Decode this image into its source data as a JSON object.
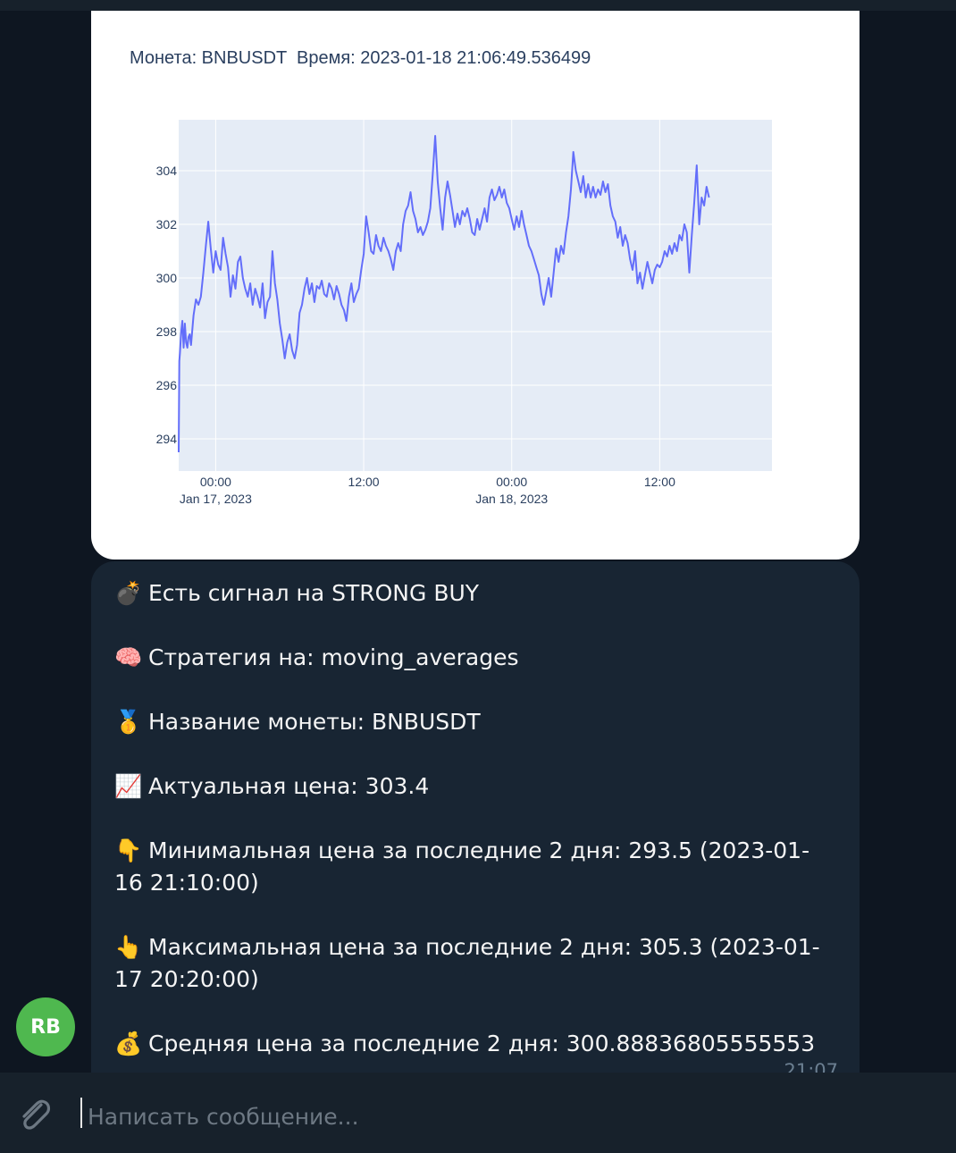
{
  "chart_message": {
    "title": "Монета: BNBUSDT  Время: 2023-01-18 21:06:49.536499",
    "chart_data": {
      "type": "line",
      "series": [
        {
          "values": [
            [
              -3.0,
              293.5
            ],
            [
              -2.95,
              296.9
            ],
            [
              -2.9,
              297.2
            ],
            [
              -2.8,
              298.0
            ],
            [
              -2.7,
              298.4
            ],
            [
              -2.6,
              297.4
            ],
            [
              -2.5,
              298.3
            ],
            [
              -2.4,
              297.6
            ],
            [
              -2.3,
              297.4
            ],
            [
              -2.2,
              297.8
            ],
            [
              -2.1,
              297.9
            ],
            [
              -2.0,
              297.5
            ],
            [
              -1.8,
              298.6
            ],
            [
              -1.6,
              299.2
            ],
            [
              -1.4,
              299.0
            ],
            [
              -1.2,
              299.3
            ],
            [
              -1.0,
              300.2
            ],
            [
              -0.8,
              301.2
            ],
            [
              -0.6,
              302.1
            ],
            [
              -0.4,
              301.1
            ],
            [
              -0.2,
              300.2
            ],
            [
              0.0,
              301.0
            ],
            [
              0.2,
              300.5
            ],
            [
              0.4,
              300.3
            ],
            [
              0.6,
              301.5
            ],
            [
              0.8,
              300.9
            ],
            [
              1.0,
              300.4
            ],
            [
              1.2,
              299.3
            ],
            [
              1.4,
              300.1
            ],
            [
              1.6,
              299.6
            ],
            [
              1.8,
              300.6
            ],
            [
              2.0,
              300.8
            ],
            [
              2.2,
              300.0
            ],
            [
              2.4,
              299.6
            ],
            [
              2.6,
              299.3
            ],
            [
              2.8,
              299.8
            ],
            [
              3.0,
              299.0
            ],
            [
              3.2,
              299.6
            ],
            [
              3.4,
              299.3
            ],
            [
              3.6,
              298.9
            ],
            [
              3.8,
              299.8
            ],
            [
              4.0,
              298.5
            ],
            [
              4.2,
              299.1
            ],
            [
              4.4,
              299.3
            ],
            [
              4.6,
              301.0
            ],
            [
              4.8,
              299.8
            ],
            [
              5.0,
              299.2
            ],
            [
              5.2,
              298.3
            ],
            [
              5.4,
              297.7
            ],
            [
              5.6,
              297.0
            ],
            [
              5.8,
              297.6
            ],
            [
              6.0,
              297.9
            ],
            [
              6.2,
              297.3
            ],
            [
              6.4,
              297.0
            ],
            [
              6.6,
              297.5
            ],
            [
              6.8,
              298.7
            ],
            [
              7.0,
              299.0
            ],
            [
              7.2,
              299.6
            ],
            [
              7.4,
              300.0
            ],
            [
              7.6,
              299.4
            ],
            [
              7.8,
              299.8
            ],
            [
              8.0,
              299.1
            ],
            [
              8.2,
              299.7
            ],
            [
              8.4,
              299.6
            ],
            [
              8.6,
              299.9
            ],
            [
              8.8,
              299.4
            ],
            [
              9.0,
              299.3
            ],
            [
              9.2,
              299.8
            ],
            [
              9.4,
              299.6
            ],
            [
              9.6,
              299.2
            ],
            [
              9.8,
              299.7
            ],
            [
              10.0,
              299.4
            ],
            [
              10.2,
              299.0
            ],
            [
              10.4,
              298.8
            ],
            [
              10.6,
              298.4
            ],
            [
              10.8,
              299.3
            ],
            [
              11.0,
              299.8
            ],
            [
              11.2,
              299.1
            ],
            [
              11.4,
              299.4
            ],
            [
              11.6,
              299.6
            ],
            [
              11.8,
              300.3
            ],
            [
              12.0,
              300.9
            ],
            [
              12.2,
              302.3
            ],
            [
              12.4,
              301.7
            ],
            [
              12.6,
              301.0
            ],
            [
              12.8,
              300.9
            ],
            [
              13.0,
              301.6
            ],
            [
              13.2,
              301.2
            ],
            [
              13.4,
              301.0
            ],
            [
              13.6,
              301.5
            ],
            [
              13.8,
              301.2
            ],
            [
              14.0,
              301.0
            ],
            [
              14.2,
              300.7
            ],
            [
              14.4,
              300.3
            ],
            [
              14.6,
              301.0
            ],
            [
              14.8,
              301.3
            ],
            [
              15.0,
              301.0
            ],
            [
              15.2,
              302.0
            ],
            [
              15.4,
              302.5
            ],
            [
              15.6,
              302.7
            ],
            [
              15.8,
              303.2
            ],
            [
              16.0,
              302.5
            ],
            [
              16.2,
              302.2
            ],
            [
              16.4,
              301.7
            ],
            [
              16.6,
              301.9
            ],
            [
              16.8,
              301.6
            ],
            [
              17.0,
              301.8
            ],
            [
              17.2,
              302.1
            ],
            [
              17.4,
              302.6
            ],
            [
              17.6,
              303.9
            ],
            [
              17.8,
              305.3
            ],
            [
              18.0,
              303.6
            ],
            [
              18.2,
              302.6
            ],
            [
              18.4,
              301.8
            ],
            [
              18.6,
              303.0
            ],
            [
              18.8,
              303.6
            ],
            [
              19.0,
              303.1
            ],
            [
              19.2,
              302.5
            ],
            [
              19.4,
              301.9
            ],
            [
              19.6,
              302.4
            ],
            [
              19.8,
              302.0
            ],
            [
              20.0,
              302.5
            ],
            [
              20.2,
              302.3
            ],
            [
              20.4,
              302.6
            ],
            [
              20.6,
              302.2
            ],
            [
              20.8,
              301.7
            ],
            [
              21.0,
              301.6
            ],
            [
              21.2,
              302.2
            ],
            [
              21.4,
              301.8
            ],
            [
              21.6,
              302.2
            ],
            [
              21.8,
              302.6
            ],
            [
              22.0,
              302.1
            ],
            [
              22.2,
              303.0
            ],
            [
              22.4,
              303.3
            ],
            [
              22.6,
              302.9
            ],
            [
              22.8,
              303.1
            ],
            [
              23.0,
              303.4
            ],
            [
              23.2,
              303.0
            ],
            [
              23.4,
              303.3
            ],
            [
              23.6,
              302.8
            ],
            [
              23.8,
              302.6
            ],
            [
              24.0,
              302.2
            ],
            [
              24.2,
              301.8
            ],
            [
              24.4,
              302.3
            ],
            [
              24.6,
              301.9
            ],
            [
              24.8,
              302.5
            ],
            [
              25.0,
              302.0
            ],
            [
              25.2,
              301.6
            ],
            [
              25.4,
              301.2
            ],
            [
              25.6,
              301.0
            ],
            [
              25.8,
              300.7
            ],
            [
              26.0,
              300.4
            ],
            [
              26.2,
              300.1
            ],
            [
              26.4,
              299.4
            ],
            [
              26.6,
              299.0
            ],
            [
              26.8,
              299.5
            ],
            [
              27.0,
              300.0
            ],
            [
              27.2,
              299.3
            ],
            [
              27.4,
              300.2
            ],
            [
              27.6,
              301.1
            ],
            [
              27.8,
              300.6
            ],
            [
              28.0,
              301.2
            ],
            [
              28.2,
              300.9
            ],
            [
              28.4,
              301.7
            ],
            [
              28.6,
              302.3
            ],
            [
              28.8,
              303.3
            ],
            [
              29.0,
              304.7
            ],
            [
              29.2,
              304.0
            ],
            [
              29.4,
              303.6
            ],
            [
              29.6,
              303.2
            ],
            [
              29.8,
              303.8
            ],
            [
              30.0,
              303.0
            ],
            [
              30.2,
              303.5
            ],
            [
              30.4,
              303.0
            ],
            [
              30.6,
              303.4
            ],
            [
              30.8,
              303.0
            ],
            [
              31.0,
              303.3
            ],
            [
              31.2,
              303.1
            ],
            [
              31.4,
              303.6
            ],
            [
              31.6,
              303.2
            ],
            [
              31.8,
              303.5
            ],
            [
              32.0,
              302.7
            ],
            [
              32.2,
              302.3
            ],
            [
              32.4,
              302.1
            ],
            [
              32.6,
              301.5
            ],
            [
              32.8,
              301.9
            ],
            [
              33.0,
              301.2
            ],
            [
              33.2,
              301.6
            ],
            [
              33.4,
              301.3
            ],
            [
              33.6,
              300.7
            ],
            [
              33.8,
              300.3
            ],
            [
              34.0,
              301.0
            ],
            [
              34.2,
              299.8
            ],
            [
              34.4,
              300.2
            ],
            [
              34.6,
              299.6
            ],
            [
              34.8,
              300.1
            ],
            [
              35.0,
              300.6
            ],
            [
              35.2,
              300.2
            ],
            [
              35.4,
              299.8
            ],
            [
              35.6,
              300.3
            ],
            [
              35.8,
              300.5
            ],
            [
              36.0,
              300.4
            ],
            [
              36.2,
              300.6
            ],
            [
              36.4,
              301.0
            ],
            [
              36.6,
              300.8
            ],
            [
              36.8,
              301.2
            ],
            [
              37.0,
              300.9
            ],
            [
              37.2,
              301.3
            ],
            [
              37.4,
              301.0
            ],
            [
              37.6,
              301.6
            ],
            [
              37.8,
              301.4
            ],
            [
              38.0,
              302.0
            ],
            [
              38.2,
              301.7
            ],
            [
              38.4,
              300.2
            ],
            [
              38.6,
              301.6
            ],
            [
              38.8,
              302.8
            ],
            [
              39.0,
              304.2
            ],
            [
              39.2,
              302.0
            ],
            [
              39.4,
              303.0
            ],
            [
              39.6,
              302.7
            ],
            [
              39.8,
              303.4
            ],
            [
              40.0,
              303.0
            ]
          ]
        }
      ],
      "xlim": [
        -3.0,
        45.1
      ],
      "ylim": [
        292.8,
        305.9
      ],
      "x_ticks": [
        0,
        12,
        24,
        36
      ],
      "x_tick_labels": [
        "00:00",
        "12:00",
        "00:00",
        "12:00"
      ],
      "x_tick_sublabels": [
        "Jan 17, 2023",
        "",
        "Jan 18, 2023",
        ""
      ],
      "y_ticks": [
        294,
        296,
        298,
        300,
        302,
        304
      ],
      "y_tick_labels": [
        "294",
        "296",
        "298",
        "300",
        "302",
        "304"
      ],
      "grid": true,
      "colors": {
        "line": "#636efa",
        "plot_bg": "#e5ecf6",
        "grid": "#ffffff",
        "tick_text": "#2a3f5f"
      }
    }
  },
  "text_message": {
    "lines": [
      {
        "emoji": "💣",
        "text": "Есть сигнал на STRONG BUY"
      },
      {
        "emoji": "🧠",
        "text": "Стратегия на: moving_averages"
      },
      {
        "emoji": "🥇",
        "text": "Название монеты: BNBUSDT"
      },
      {
        "emoji": "📈",
        "text": "Актуальная цена: 303.4"
      },
      {
        "emoji": "👇",
        "text": "Минимальная цена за последние 2 дня: 293.5 (2023-01-16 21:10:00)"
      },
      {
        "emoji": "👆",
        "text": "Максимальная цена за последние 2 дня: 305.3 (2023-01-17 20:20:00)"
      },
      {
        "emoji": "💰",
        "text": "Средняя цена за последние 2 дня: 300.88836805555553"
      }
    ],
    "time": "21:07"
  },
  "sender": {
    "initials": "RB",
    "avatar_color": "#4fb84f"
  },
  "composer": {
    "placeholder": "Написать сообщение..."
  },
  "icons": {
    "attach": "paperclip-icon"
  }
}
